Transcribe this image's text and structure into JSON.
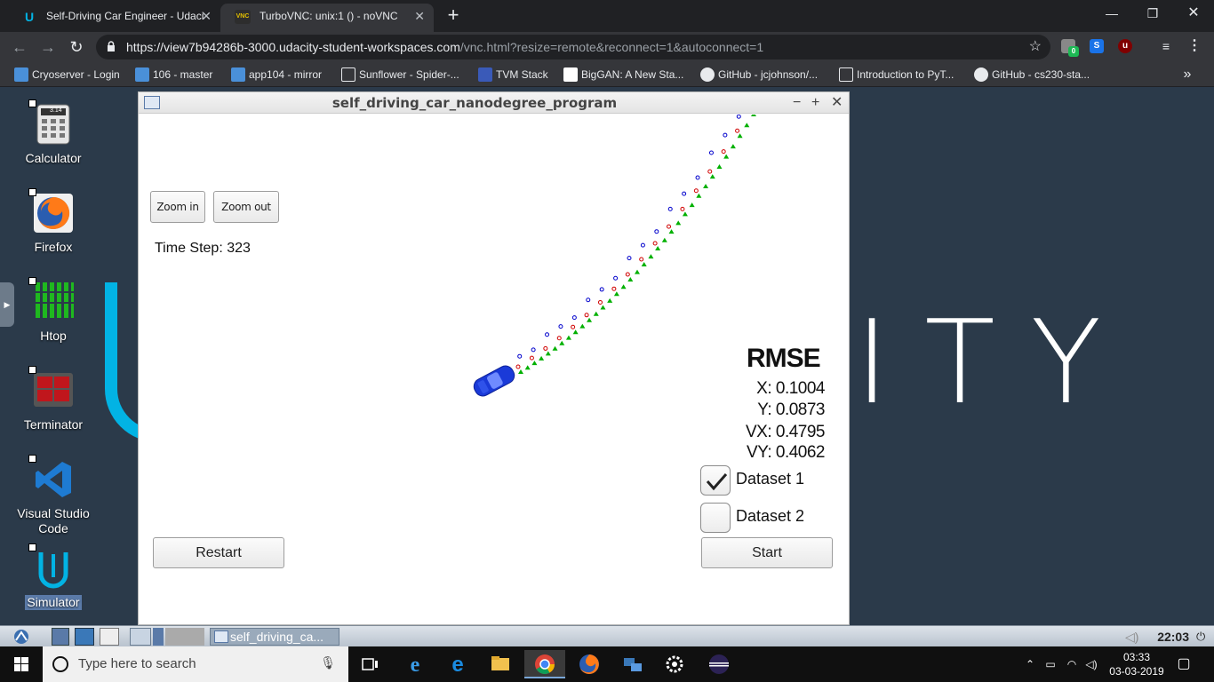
{
  "browser": {
    "tabs": [
      {
        "title": "Self-Driving Car Engineer - Udaci",
        "icon": "udacity-icon",
        "active": false
      },
      {
        "title": "TurboVNC: unix:1 () - noVNC",
        "icon": "vnc-icon",
        "icon_text": "VNC",
        "active": true
      }
    ],
    "new_tab": "+",
    "url_host": "https://view7b94286b-3000.udacity-student-workspaces.com",
    "url_path": "/vnc.html?resize=remote&reconnect=1&autoconnect=1",
    "extension_badge": "0",
    "bookmarks": [
      {
        "label": "Cryoserver - Login",
        "icon": "cryoserver-icon",
        "color": "#4a90d9"
      },
      {
        "label": "106 - master",
        "icon": "jenkins-icon",
        "color": "#4a90d9"
      },
      {
        "label": "app104 - mirror",
        "icon": "jenkins-icon",
        "color": "#4a90d9"
      },
      {
        "label": "Sunflower - Spider-...",
        "icon": "page-icon",
        "color": "#e8eaed"
      },
      {
        "label": "TVM Stack",
        "icon": "tvm-icon",
        "color": "#3a5ab8"
      },
      {
        "label": "BigGAN: A New Sta...",
        "icon": "arxiv-icon",
        "color": "#ffffff"
      },
      {
        "label": "GitHub - jcjohnson/...",
        "icon": "github-icon",
        "color": "#e8eaed"
      },
      {
        "label": "Introduction to PyT...",
        "icon": "page-icon",
        "color": "#e8eaed"
      },
      {
        "label": "GitHub - cs230-sta...",
        "icon": "github-icon",
        "color": "#e8eaed"
      }
    ],
    "bookmarks_more": "»"
  },
  "desktop": {
    "icons": [
      {
        "label": "Calculator",
        "icon": "calculator-icon",
        "sub": "3.14"
      },
      {
        "label": "Firefox",
        "icon": "firefox-icon"
      },
      {
        "label": "Htop",
        "icon": "htop-icon"
      },
      {
        "label": "Terminator",
        "icon": "terminator-icon"
      },
      {
        "label": "Visual Studio Code",
        "icon": "vscode-icon"
      },
      {
        "label": "Simulator",
        "icon": "udacity-simulator-icon"
      }
    ],
    "wallpaper_text": "ITY"
  },
  "simulator": {
    "title": "self_driving_car_nanodegree_program",
    "zoom_in": "Zoom in",
    "zoom_out": "Zoom out",
    "time_step": "Time Step: 323",
    "rmse_title": "RMSE",
    "rmse": {
      "x": "X: 0.1004",
      "y": "Y: 0.0873",
      "vx": "VX: 0.4795",
      "vy": "VY: 0.4062"
    },
    "dataset1": {
      "label": "Dataset 1",
      "checked": true
    },
    "dataset2": {
      "label": "Dataset 2",
      "checked": false
    },
    "restart": "Restart",
    "start": "Start",
    "colors": {
      "lidar": "#d00000",
      "radar": "#0000cc",
      "estimate": "#00b000",
      "car": "#1a3ad8"
    }
  },
  "vnc_taskbar": {
    "window_button": "self_driving_ca...",
    "clock": "22:03"
  },
  "windows_taskbar": {
    "search_placeholder": "Type here to search",
    "time": "03:33",
    "date": "03-03-2019"
  }
}
